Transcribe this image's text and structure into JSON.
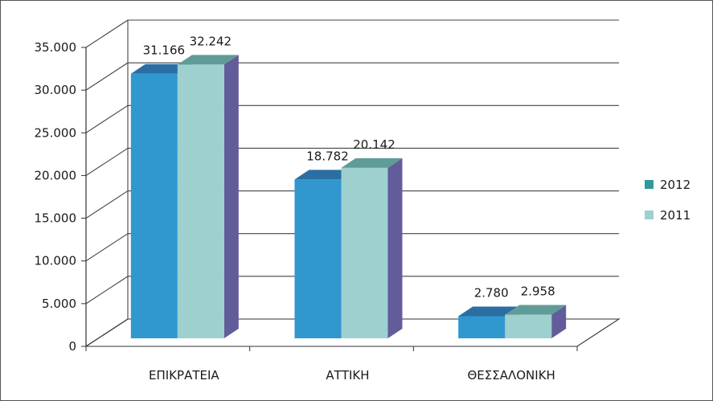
{
  "chart_data": {
    "type": "bar",
    "categories": [
      "ΕΠΙΚΡΑΤΕΙΑ",
      "ΑΤΤΙΚΗ",
      "ΘΕΣΣΑΛΟΝΙΚΗ"
    ],
    "series": [
      {
        "name": "2012",
        "values": [
          31166,
          18782,
          2780
        ],
        "labels": [
          "31.166",
          "18.782",
          "2.780"
        ],
        "color": "#3197cf",
        "top_color": "#2b6ea4",
        "side_color": "#1f5d8c"
      },
      {
        "name": "2011",
        "values": [
          32242,
          20142,
          2958
        ],
        "labels": [
          "32.242",
          "20.142",
          "2.958"
        ],
        "color": "#9dd0cf",
        "top_color": "#5f9c98",
        "side_color": "#625c9a"
      }
    ],
    "yticks": [
      0,
      5000,
      10000,
      15000,
      20000,
      25000,
      30000,
      35000
    ],
    "ytick_labels": [
      "0",
      "5.000",
      "10.000",
      "15.000",
      "20.000",
      "25.000",
      "30.000",
      "35.000"
    ],
    "ylim": [
      0,
      35000
    ],
    "legend_position": "right",
    "grid": true,
    "three_d": true
  },
  "legend_colors": {
    "2012": "#2f9a9a",
    "2011": "#9dd0cf"
  }
}
